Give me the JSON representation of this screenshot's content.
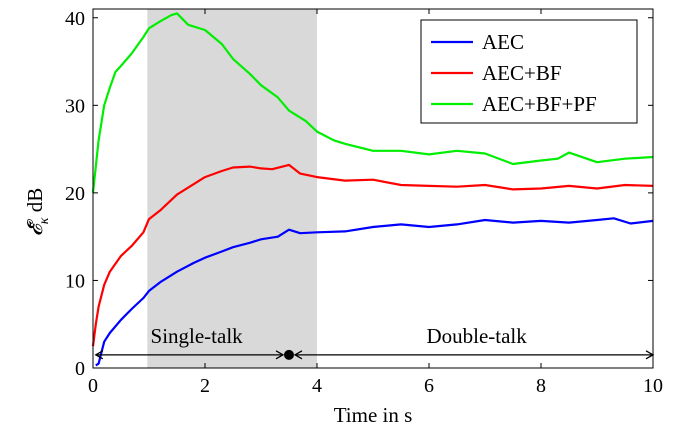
{
  "chart_data": {
    "type": "line",
    "title": "",
    "xlabel": "Time in s",
    "ylabel": "𝓔̄",
    "ylabel_subscript": "κ",
    "ylabel_unit": "dB",
    "xlim": [
      0,
      10
    ],
    "ylim": [
      0,
      41
    ],
    "xticks": [
      0,
      2,
      4,
      6,
      8,
      10
    ],
    "yticks": [
      0,
      10,
      20,
      30,
      40
    ],
    "xtick_labels": [
      "0",
      "2",
      "4",
      "6",
      "8",
      "10"
    ],
    "ytick_labels": [
      "0",
      "10",
      "20",
      "30",
      "40"
    ],
    "grid": false,
    "legend_position": "top-right",
    "shaded_region": {
      "x": [
        0.97,
        4.0
      ],
      "color": "#d9d9d9"
    },
    "annotations": {
      "single_talk": "Single-talk",
      "double_talk": "Double-talk",
      "arrow_y": 1.5,
      "single_talk_range": [
        0.05,
        3.5
      ],
      "double_talk_range": [
        3.5,
        10.0
      ],
      "marker_x": 3.5
    },
    "series": [
      {
        "name": "AEC",
        "color": "#0000ff",
        "x": [
          0.05,
          0.1,
          0.2,
          0.3,
          0.5,
          0.7,
          0.9,
          1.0,
          1.2,
          1.5,
          1.8,
          2.0,
          2.3,
          2.5,
          2.8,
          3.0,
          3.3,
          3.5,
          3.7,
          4.0,
          4.5,
          5.0,
          5.5,
          6.0,
          6.5,
          7.0,
          7.5,
          8.0,
          8.5,
          9.0,
          9.3,
          9.6,
          10.0
        ],
        "y": [
          0.3,
          0.5,
          3.0,
          4.0,
          5.5,
          6.8,
          8.0,
          8.8,
          9.8,
          11.0,
          12.0,
          12.6,
          13.3,
          13.8,
          14.3,
          14.7,
          15.0,
          15.8,
          15.4,
          15.5,
          15.6,
          16.1,
          16.4,
          16.1,
          16.4,
          16.9,
          16.6,
          16.8,
          16.6,
          16.9,
          17.1,
          16.5,
          16.8
        ]
      },
      {
        "name": "AEC+BF",
        "color": "#ff0000",
        "x": [
          0.0,
          0.05,
          0.1,
          0.2,
          0.3,
          0.5,
          0.7,
          0.9,
          1.0,
          1.2,
          1.5,
          1.8,
          2.0,
          2.3,
          2.5,
          2.8,
          3.0,
          3.2,
          3.5,
          3.7,
          4.0,
          4.5,
          5.0,
          5.5,
          6.0,
          6.5,
          7.0,
          7.5,
          8.0,
          8.5,
          9.0,
          9.5,
          10.0
        ],
        "y": [
          2.5,
          5.0,
          7.0,
          9.5,
          11.0,
          12.8,
          14.0,
          15.5,
          17.0,
          18.0,
          19.8,
          21.0,
          21.8,
          22.5,
          22.9,
          23.0,
          22.8,
          22.7,
          23.2,
          22.2,
          21.8,
          21.4,
          21.5,
          20.9,
          20.8,
          20.7,
          20.9,
          20.4,
          20.5,
          20.8,
          20.5,
          20.9,
          20.8
        ]
      },
      {
        "name": "AEC+BF+PF",
        "color": "#00ee00",
        "x": [
          0.0,
          0.05,
          0.1,
          0.2,
          0.3,
          0.4,
          0.5,
          0.7,
          0.9,
          1.0,
          1.2,
          1.4,
          1.5,
          1.7,
          2.0,
          2.3,
          2.5,
          2.8,
          3.0,
          3.3,
          3.5,
          3.8,
          4.0,
          4.3,
          4.5,
          5.0,
          5.5,
          6.0,
          6.5,
          7.0,
          7.5,
          8.0,
          8.3,
          8.5,
          9.0,
          9.5,
          10.0
        ],
        "y": [
          20.0,
          23.0,
          26.0,
          30.0,
          32.0,
          33.8,
          34.5,
          36.0,
          37.8,
          38.8,
          39.6,
          40.3,
          40.5,
          39.2,
          38.6,
          37.0,
          35.3,
          33.6,
          32.3,
          30.9,
          29.4,
          28.2,
          27.0,
          26.0,
          25.6,
          24.8,
          24.8,
          24.4,
          24.8,
          24.5,
          23.3,
          23.7,
          23.9,
          24.6,
          23.5,
          23.9,
          24.1
        ]
      }
    ]
  }
}
